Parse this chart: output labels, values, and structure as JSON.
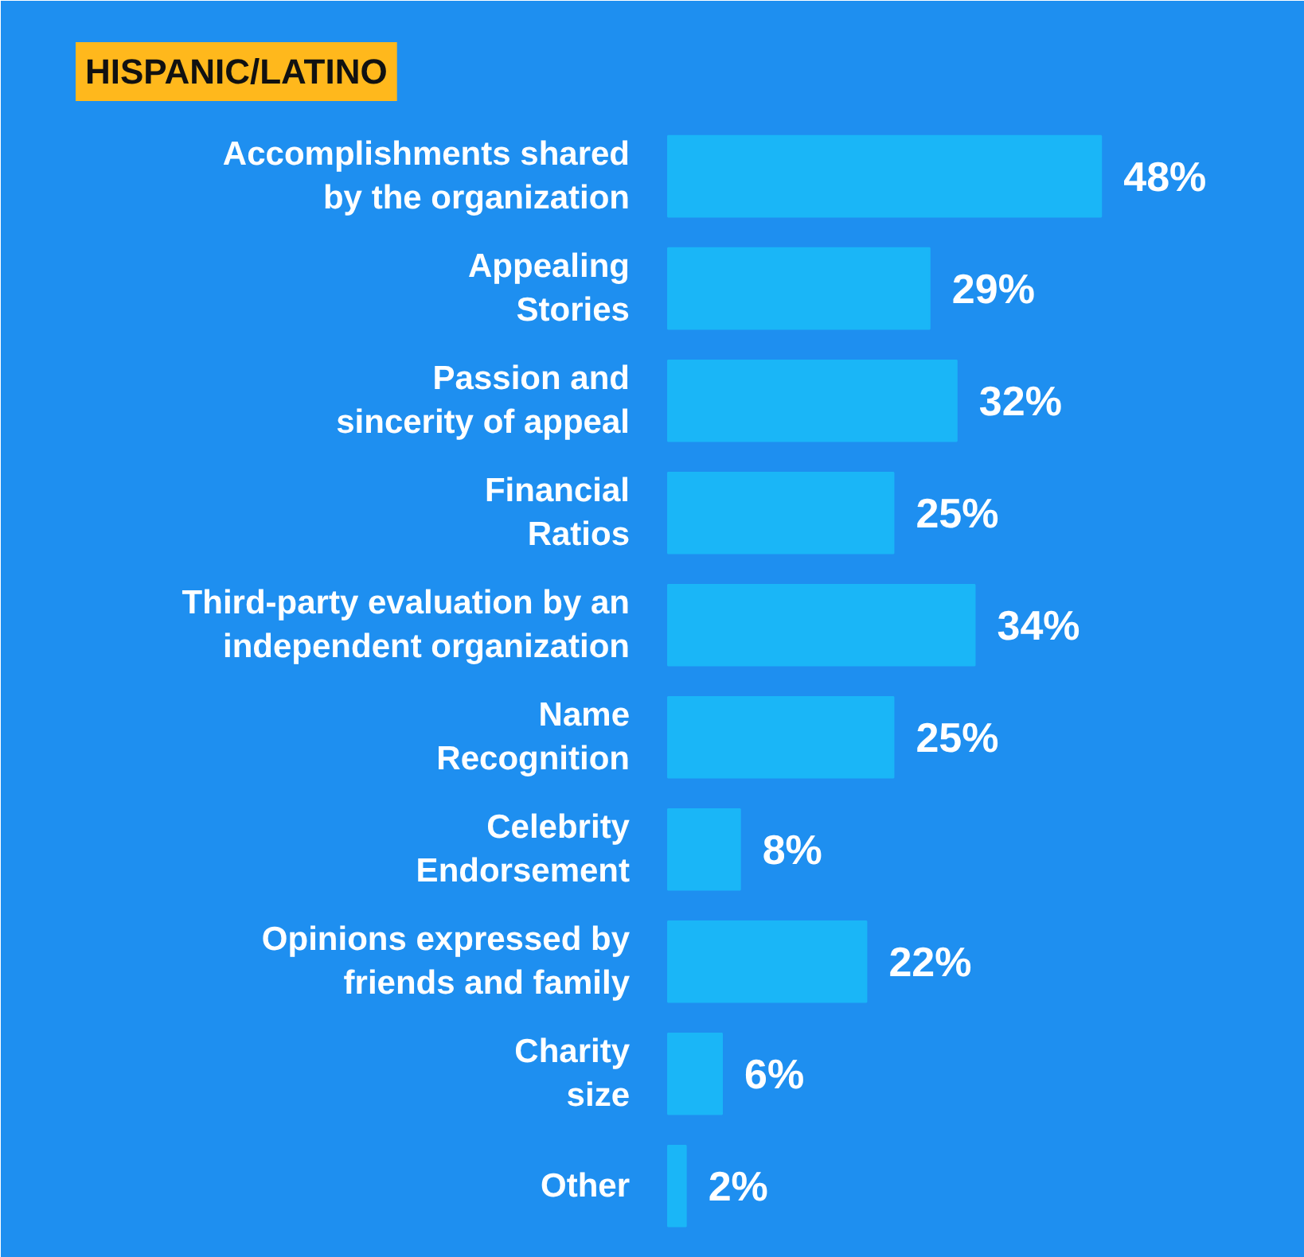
{
  "chart_data": {
    "type": "bar",
    "orientation": "horizontal",
    "title": "HISPANIC/LATINO",
    "categories": [
      "Accomplishments shared\nby the organization",
      "Appealing\nStories",
      "Passion and\nsincerity of appeal",
      "Financial\nRatios",
      "Third-party evaluation by an\nindependent organization",
      "Name\nRecognition",
      "Celebrity\nEndorsement",
      "Opinions expressed by\nfriends and family",
      "Charity\nsize",
      "Other"
    ],
    "values": [
      48,
      29,
      32,
      25,
      34,
      25,
      8,
      22,
      6,
      2
    ],
    "color": "#1ab6f7",
    "data_labels": true,
    "value_labels": [
      "48%",
      "29%",
      "32%",
      "25%",
      "34%",
      "25%",
      "8%",
      "22%",
      "6%",
      "2%"
    ],
    "grid": false
  }
}
